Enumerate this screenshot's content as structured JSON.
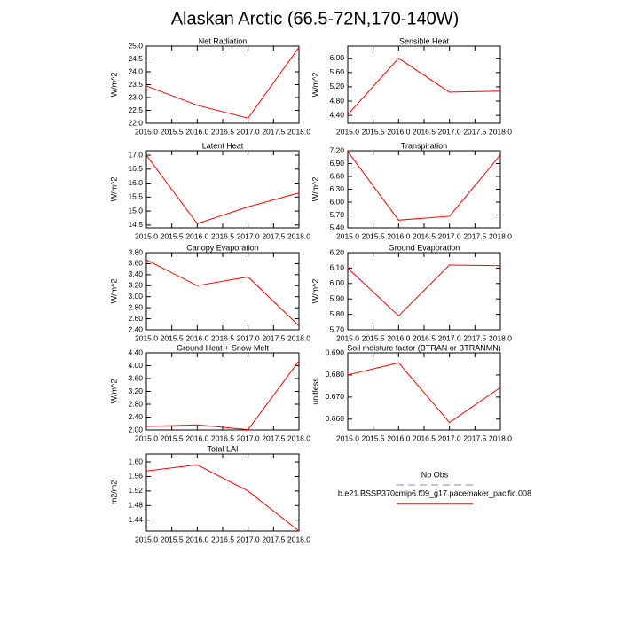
{
  "title": "Alaskan Arctic (66.5-72N,170-140W)",
  "legend": [
    {
      "name": "No Obs",
      "color": "#aab0d8",
      "dashed": true
    },
    {
      "name": "b.e21.BSSP370cmip6.f09_g17.pacemaker_pacific.008",
      "color": "#ff0000",
      "dashed": false
    }
  ],
  "chart_data": [
    {
      "type": "line",
      "title": "Net Radiation",
      "y_label": "W/m^2",
      "x": [
        2015,
        2016,
        2017,
        2018
      ],
      "values": [
        23.45,
        22.7,
        22.2,
        24.95
      ],
      "color": "#ff0000",
      "xlim": [
        2015,
        2018
      ],
      "xticks": [
        {
          "value": 2015,
          "label": "2015.0"
        },
        2015.5,
        {
          "value": 2016,
          "label": "2016.0"
        },
        2016.5,
        {
          "value": 2017,
          "label": "2017.0"
        },
        2017.5,
        {
          "value": 2018,
          "label": "2018.0"
        }
      ],
      "ylim": [
        22,
        25
      ],
      "yticks": [
        {
          "value": 22,
          "label": "22.0"
        },
        22.5,
        {
          "value": 23,
          "label": "23.0"
        },
        23.5,
        {
          "value": 24,
          "label": "24.0"
        },
        24.5,
        {
          "value": 25,
          "label": "25.0"
        }
      ]
    },
    {
      "type": "line",
      "title": "Sensible Heat",
      "y_label": "W/m^2",
      "x": [
        2015,
        2016,
        2017,
        2018
      ],
      "values": [
        4.42,
        6.0,
        5.05,
        5.08
      ],
      "color": "#ff0000",
      "xlim": [
        2015,
        2018
      ],
      "xticks": [
        {
          "value": 2015,
          "label": "2015.0"
        },
        2015.5,
        {
          "value": 2016,
          "label": "2016.0"
        },
        2016.5,
        {
          "value": 2017,
          "label": "2017.0"
        },
        2017.5,
        {
          "value": 2018,
          "label": "2018.0"
        }
      ],
      "ylim": [
        4.18,
        6.34
      ],
      "yticks": [
        {
          "value": 4.4,
          "label": "4.40"
        },
        {
          "value": 4.8,
          "label": "4.80"
        },
        {
          "value": 5.2,
          "label": "5.20"
        },
        {
          "value": 5.6,
          "label": "5.60"
        },
        {
          "value": 6,
          "label": "6.00"
        }
      ]
    },
    {
      "type": "line",
      "title": "Latent Heat",
      "y_label": "W/m^2",
      "x": [
        2015,
        2016,
        2017,
        2018
      ],
      "values": [
        17.0,
        14.55,
        15.15,
        15.65
      ],
      "color": "#ff0000",
      "xlim": [
        2015,
        2018
      ],
      "xticks": [
        {
          "value": 2015,
          "label": "2015.0"
        },
        2015.5,
        {
          "value": 2016,
          "label": "2016.0"
        },
        2016.5,
        {
          "value": 2017,
          "label": "2017.0"
        },
        2017.5,
        {
          "value": 2018,
          "label": "2018.0"
        }
      ],
      "ylim": [
        14.4,
        17.16
      ],
      "yticks": [
        14.5,
        {
          "value": 15,
          "label": "15.0"
        },
        15.5,
        {
          "value": 16,
          "label": "16.0"
        },
        16.5,
        {
          "value": 17,
          "label": "17.0"
        }
      ]
    },
    {
      "type": "line",
      "title": "Transpiration",
      "y_label": "W/m^2",
      "x": [
        2015,
        2016,
        2017,
        2018
      ],
      "values": [
        7.18,
        5.58,
        5.67,
        7.1
      ],
      "color": "#ff0000",
      "xlim": [
        2015,
        2018
      ],
      "xticks": [
        {
          "value": 2015,
          "label": "2015.0"
        },
        2015.5,
        {
          "value": 2016,
          "label": "2016.0"
        },
        2016.5,
        {
          "value": 2017,
          "label": "2017.0"
        },
        2017.5,
        {
          "value": 2018,
          "label": "2018.0"
        }
      ],
      "ylim": [
        5.4,
        7.2
      ],
      "yticks": [
        {
          "value": 5.4,
          "label": "5.40"
        },
        {
          "value": 5.7,
          "label": "5.70"
        },
        {
          "value": 6,
          "label": "6.00"
        },
        {
          "value": 6.3,
          "label": "6.30"
        },
        {
          "value": 6.6,
          "label": "6.60"
        },
        {
          "value": 6.9,
          "label": "6.90"
        },
        {
          "value": 7.2,
          "label": "7.20"
        }
      ]
    },
    {
      "type": "line",
      "title": "Canopy Evaporation",
      "y_label": "W/m^2",
      "x": [
        2015,
        2016,
        2017,
        2018
      ],
      "values": [
        3.67,
        3.2,
        3.36,
        2.47
      ],
      "color": "#ff0000",
      "xlim": [
        2015,
        2018
      ],
      "xticks": [
        {
          "value": 2015,
          "label": "2015.0"
        },
        2015.5,
        {
          "value": 2016,
          "label": "2016.0"
        },
        2016.5,
        {
          "value": 2017,
          "label": "2017.0"
        },
        2017.5,
        {
          "value": 2018,
          "label": "2018.0"
        }
      ],
      "ylim": [
        2.4,
        3.8
      ],
      "yticks": [
        {
          "value": 2.4,
          "label": "2.40"
        },
        {
          "value": 2.6,
          "label": "2.60"
        },
        {
          "value": 2.8,
          "label": "2.80"
        },
        {
          "value": 3,
          "label": "3.00"
        },
        {
          "value": 3.2,
          "label": "3.20"
        },
        {
          "value": 3.4,
          "label": "3.40"
        },
        {
          "value": 3.6,
          "label": "3.60"
        },
        {
          "value": 3.8,
          "label": "3.80"
        }
      ]
    },
    {
      "type": "line",
      "title": "Ground Evaporation",
      "y_label": "W/m^2",
      "x": [
        2015,
        2016,
        2017,
        2018
      ],
      "values": [
        6.1,
        5.79,
        6.12,
        6.115
      ],
      "color": "#ff0000",
      "xlim": [
        2015,
        2018
      ],
      "xticks": [
        {
          "value": 2015,
          "label": "2015.0"
        },
        2015.5,
        {
          "value": 2016,
          "label": "2016.0"
        },
        2016.5,
        {
          "value": 2017,
          "label": "2017.0"
        },
        2017.5,
        {
          "value": 2018,
          "label": "2018.0"
        }
      ],
      "ylim": [
        5.7,
        6.2
      ],
      "yticks": [
        {
          "value": 5.7,
          "label": "5.70"
        },
        {
          "value": 5.8,
          "label": "5.80"
        },
        {
          "value": 5.9,
          "label": "5.90"
        },
        {
          "value": 6,
          "label": "6.00"
        },
        {
          "value": 6.1,
          "label": "6.10"
        },
        {
          "value": 6.2,
          "label": "6.20"
        }
      ]
    },
    {
      "type": "line",
      "title": "Ground Heat + Snow Melt",
      "y_label": "W/m^2",
      "x": [
        2015,
        2016,
        2017,
        2018
      ],
      "values": [
        2.11,
        2.16,
        2.01,
        4.15
      ],
      "color": "#ff0000",
      "xlim": [
        2015,
        2018
      ],
      "xticks": [
        {
          "value": 2015,
          "label": "2015.0"
        },
        2015.5,
        {
          "value": 2016,
          "label": "2016.0"
        },
        2016.5,
        {
          "value": 2017,
          "label": "2017.0"
        },
        2017.5,
        {
          "value": 2018,
          "label": "2018.0"
        }
      ],
      "ylim": [
        2,
        4.4
      ],
      "yticks": [
        {
          "value": 2,
          "label": "2.00"
        },
        {
          "value": 2.4,
          "label": "2.40"
        },
        {
          "value": 2.8,
          "label": "2.80"
        },
        {
          "value": 3.2,
          "label": "3.20"
        },
        {
          "value": 3.6,
          "label": "3.60"
        },
        {
          "value": 4,
          "label": "4.00"
        },
        {
          "value": 4.4,
          "label": "4.40"
        }
      ]
    },
    {
      "type": "line",
      "title": "Soil moisture factor (BTRAN or BTRANMN)",
      "y_label": "unitless",
      "x": [
        2015,
        2016,
        2017,
        2018
      ],
      "values": [
        0.68,
        0.6855,
        0.6585,
        0.6743
      ],
      "color": "#ff0000",
      "xlim": [
        2015,
        2018
      ],
      "xticks": [
        {
          "value": 2015,
          "label": "2015.0"
        },
        2015.5,
        {
          "value": 2016,
          "label": "2016.0"
        },
        2016.5,
        {
          "value": 2017,
          "label": "2017.0"
        },
        2017.5,
        {
          "value": 2018,
          "label": "2018.0"
        }
      ],
      "ylim": [
        0.6551,
        0.69
      ],
      "yticks": [
        {
          "value": 0.66,
          "label": "0.660"
        },
        {
          "value": 0.67,
          "label": "0.670"
        },
        {
          "value": 0.68,
          "label": "0.680"
        },
        {
          "value": 0.69,
          "label": "0.690"
        }
      ]
    },
    {
      "type": "line",
      "title": "Total LAI",
      "y_label": "m2/m2",
      "x": [
        2015,
        2016,
        2017,
        2018
      ],
      "values": [
        1.575,
        1.592,
        1.52,
        1.41
      ],
      "color": "#ff0000",
      "xlim": [
        2015,
        2018
      ],
      "xticks": [
        {
          "value": 2015,
          "label": "2015.0"
        },
        2015.5,
        {
          "value": 2016,
          "label": "2016.0"
        },
        2016.5,
        {
          "value": 2017,
          "label": "2017.0"
        },
        2017.5,
        {
          "value": 2018,
          "label": "2018.0"
        }
      ],
      "ylim": [
        1.41,
        1.622
      ],
      "yticks": [
        {
          "value": 1.44,
          "label": "1.44"
        },
        {
          "value": 1.48,
          "label": "1.48"
        },
        {
          "value": 1.52,
          "label": "1.52"
        },
        {
          "value": 1.56,
          "label": "1.56"
        },
        {
          "value": 1.6,
          "label": "1.60"
        }
      ]
    }
  ]
}
